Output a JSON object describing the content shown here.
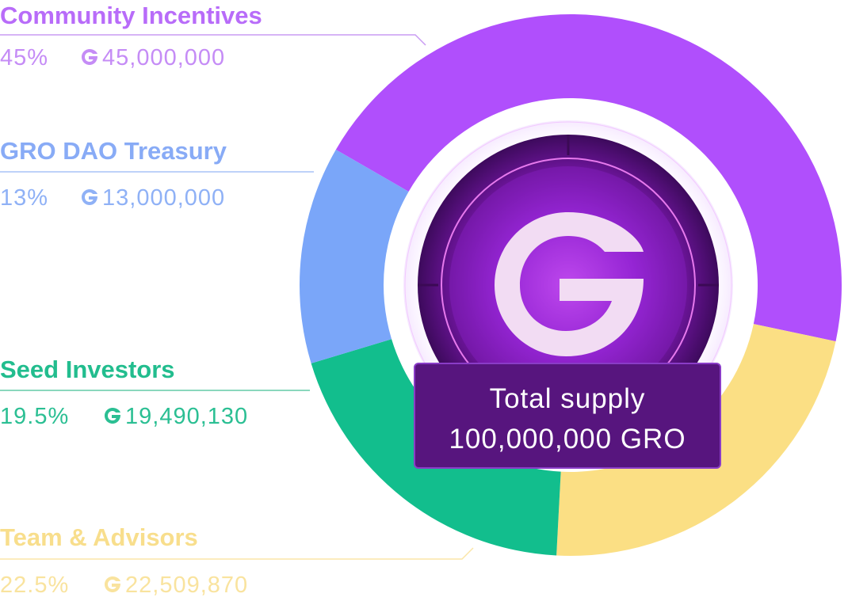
{
  "chart_data": {
    "type": "pie",
    "style": "donut",
    "series": [
      {
        "name": "Community Incentives",
        "percent_label": "45%",
        "percent": 45,
        "amount": "45,000,000",
        "color": "#b04ffc"
      },
      {
        "name": "GRO DAO Treasury",
        "percent_label": "13%",
        "percent": 13,
        "amount": "13,000,000",
        "color": "#7aa6f9"
      },
      {
        "name": "Seed Investors",
        "percent_label": "19.5%",
        "percent": 19.5,
        "amount": "19,490,130",
        "color": "#12be8d"
      },
      {
        "name": "Team & Advisors",
        "percent_label": "22.5%",
        "percent": 22.5,
        "amount": "22,509,870",
        "color": "#fbdf84"
      }
    ],
    "center_label": {
      "line1": "Total supply",
      "line2": "100,000,000 GRO"
    },
    "legend_placement": "left"
  },
  "icons": {
    "token": "gro-g-icon",
    "center_logo": "gro-logo-icon"
  },
  "colors": {
    "center_box": "#57157e",
    "logo_glow": "#b93cff",
    "logo_fill": "#f2dcf3"
  }
}
